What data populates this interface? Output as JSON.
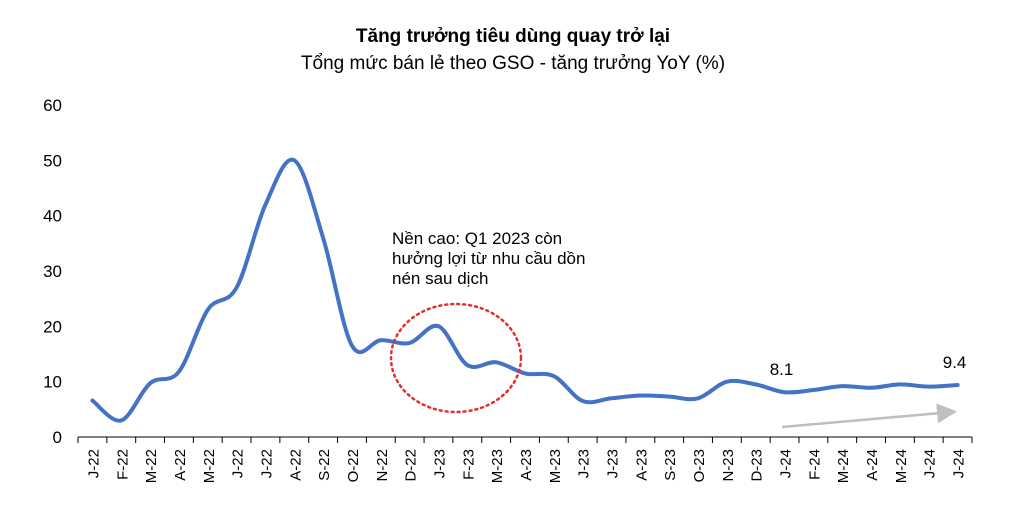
{
  "chart_data": {
    "type": "line",
    "title": "Tăng trưởng tiêu dùng quay trở lại",
    "subtitle": "Tổng mức bán lẻ theo GSO - tăng trưởng YoY (%)",
    "categories": [
      "J-22",
      "F-22",
      "M-22",
      "A-22",
      "M-22",
      "J-22",
      "J-22",
      "A-22",
      "S-22",
      "O-22",
      "N-22",
      "D-22",
      "J-23",
      "F-23",
      "M-23",
      "A-23",
      "M-23",
      "J-23",
      "J-23",
      "A-23",
      "S-23",
      "O-23",
      "N-23",
      "D-23",
      "J-24",
      "F-24",
      "M-24",
      "A-24",
      "M-24",
      "J-24",
      "J-24"
    ],
    "series": [
      {
        "values": [
          6.6,
          3.0,
          9.7,
          11.8,
          23.0,
          27.0,
          42.0,
          50.0,
          36.0,
          16.5,
          17.5,
          17.0,
          20.0,
          13.0,
          13.5,
          11.5,
          11.0,
          6.5,
          7.0,
          7.5,
          7.3,
          7.0,
          10.0,
          9.5,
          8.1,
          8.5,
          9.2,
          8.9,
          9.5,
          9.1,
          9.4
        ]
      }
    ],
    "ylim": [
      0,
      60
    ],
    "yticks": [
      0,
      10,
      20,
      30,
      40,
      50,
      60
    ],
    "grid": false,
    "legend": "none",
    "data_labels": [
      {
        "index": 24,
        "text": "8.1"
      },
      {
        "index": 30,
        "text": "9.4"
      }
    ],
    "annotation": {
      "lines": [
        "Nền cao: Q1 2023 còn",
        "hưởng lợi từ nhu cầu dồn",
        "nén sau dịch"
      ]
    },
    "colors": {
      "line": "#4472C4",
      "highlight_circle": "#E03030",
      "trend_arrow": "#BFBFBF"
    }
  }
}
